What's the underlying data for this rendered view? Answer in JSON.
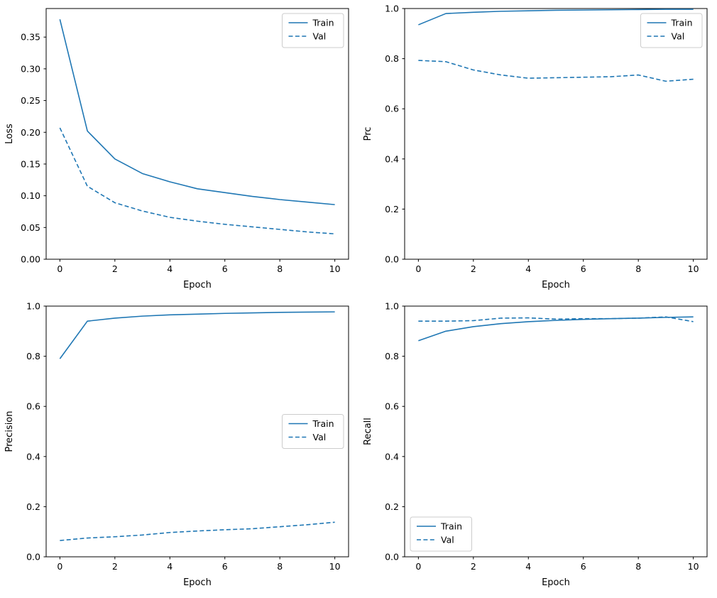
{
  "figure": {
    "background": "#ffffff",
    "accent_color": "#1f77b4",
    "spine_color": "#000000",
    "legend_border_color": "#cccccc"
  },
  "chart_data": [
    {
      "id": "loss",
      "type": "line",
      "title": "",
      "xlabel": "Epoch",
      "ylabel": "Loss",
      "x": [
        0,
        1,
        2,
        3,
        4,
        5,
        6,
        7,
        8,
        9,
        10
      ],
      "xlim": [
        -0.5,
        10.5
      ],
      "ylim": [
        0.0,
        0.395
      ],
      "xticks": [
        "0",
        "2",
        "4",
        "6",
        "8",
        "10"
      ],
      "yticks": [
        "0.00",
        "0.05",
        "0.10",
        "0.15",
        "0.20",
        "0.25",
        "0.30",
        "0.35"
      ],
      "grid": false,
      "legend_loc": "upper right",
      "legend_entries": [
        "Train",
        "Val"
      ],
      "series": [
        {
          "name": "Train",
          "line_style": "solid",
          "values": [
            0.378,
            0.202,
            0.158,
            0.135,
            0.122,
            0.111,
            0.105,
            0.099,
            0.094,
            0.09,
            0.086
          ]
        },
        {
          "name": "Val",
          "line_style": "dashed",
          "values": [
            0.207,
            0.115,
            0.089,
            0.076,
            0.066,
            0.06,
            0.055,
            0.051,
            0.047,
            0.043,
            0.04
          ]
        }
      ]
    },
    {
      "id": "prc",
      "type": "line",
      "title": "",
      "xlabel": "Epoch",
      "ylabel": "Prc",
      "x": [
        0,
        1,
        2,
        3,
        4,
        5,
        6,
        7,
        8,
        9,
        10
      ],
      "xlim": [
        -0.5,
        10.5
      ],
      "ylim": [
        0.0,
        1.0
      ],
      "xticks": [
        "0",
        "2",
        "4",
        "6",
        "8",
        "10"
      ],
      "yticks": [
        "0.0",
        "0.2",
        "0.4",
        "0.6",
        "0.8",
        "1.0"
      ],
      "grid": false,
      "legend_loc": "upper right",
      "legend_entries": [
        "Train",
        "Val"
      ],
      "series": [
        {
          "name": "Train",
          "line_style": "solid",
          "values": [
            0.935,
            0.98,
            0.985,
            0.989,
            0.991,
            0.993,
            0.994,
            0.995,
            0.996,
            0.997,
            0.997
          ]
        },
        {
          "name": "Val",
          "line_style": "dashed",
          "values": [
            0.793,
            0.788,
            0.755,
            0.735,
            0.722,
            0.724,
            0.726,
            0.728,
            0.735,
            0.71,
            0.718
          ]
        }
      ]
    },
    {
      "id": "precision",
      "type": "line",
      "title": "",
      "xlabel": "Epoch",
      "ylabel": "Precision",
      "x": [
        0,
        1,
        2,
        3,
        4,
        5,
        6,
        7,
        8,
        9,
        10
      ],
      "xlim": [
        -0.5,
        10.5
      ],
      "ylim": [
        0.0,
        1.0
      ],
      "xticks": [
        "0",
        "2",
        "4",
        "6",
        "8",
        "10"
      ],
      "yticks": [
        "0.0",
        "0.2",
        "0.4",
        "0.6",
        "0.8",
        "1.0"
      ],
      "grid": false,
      "legend_loc": "center right",
      "legend_entries": [
        "Train",
        "Val"
      ],
      "series": [
        {
          "name": "Train",
          "line_style": "solid",
          "values": [
            0.79,
            0.94,
            0.952,
            0.96,
            0.965,
            0.968,
            0.971,
            0.973,
            0.975,
            0.976,
            0.977
          ]
        },
        {
          "name": "Val",
          "line_style": "dashed",
          "values": [
            0.065,
            0.075,
            0.08,
            0.087,
            0.097,
            0.103,
            0.108,
            0.112,
            0.12,
            0.128,
            0.138
          ]
        }
      ]
    },
    {
      "id": "recall",
      "type": "line",
      "title": "",
      "xlabel": "Epoch",
      "ylabel": "Recall",
      "x": [
        0,
        1,
        2,
        3,
        4,
        5,
        6,
        7,
        8,
        9,
        10
      ],
      "xlim": [
        -0.5,
        10.5
      ],
      "ylim": [
        0.0,
        1.0
      ],
      "xticks": [
        "0",
        "2",
        "4",
        "6",
        "8",
        "10"
      ],
      "yticks": [
        "0.0",
        "0.2",
        "0.4",
        "0.6",
        "0.8",
        "1.0"
      ],
      "grid": false,
      "legend_loc": "lower left",
      "legend_entries": [
        "Train",
        "Val"
      ],
      "series": [
        {
          "name": "Train",
          "line_style": "solid",
          "values": [
            0.862,
            0.9,
            0.918,
            0.93,
            0.938,
            0.943,
            0.947,
            0.95,
            0.952,
            0.955,
            0.957
          ]
        },
        {
          "name": "Val",
          "line_style": "dashed",
          "values": [
            0.94,
            0.94,
            0.942,
            0.952,
            0.953,
            0.948,
            0.95,
            0.95,
            0.952,
            0.957,
            0.938
          ]
        }
      ]
    }
  ]
}
